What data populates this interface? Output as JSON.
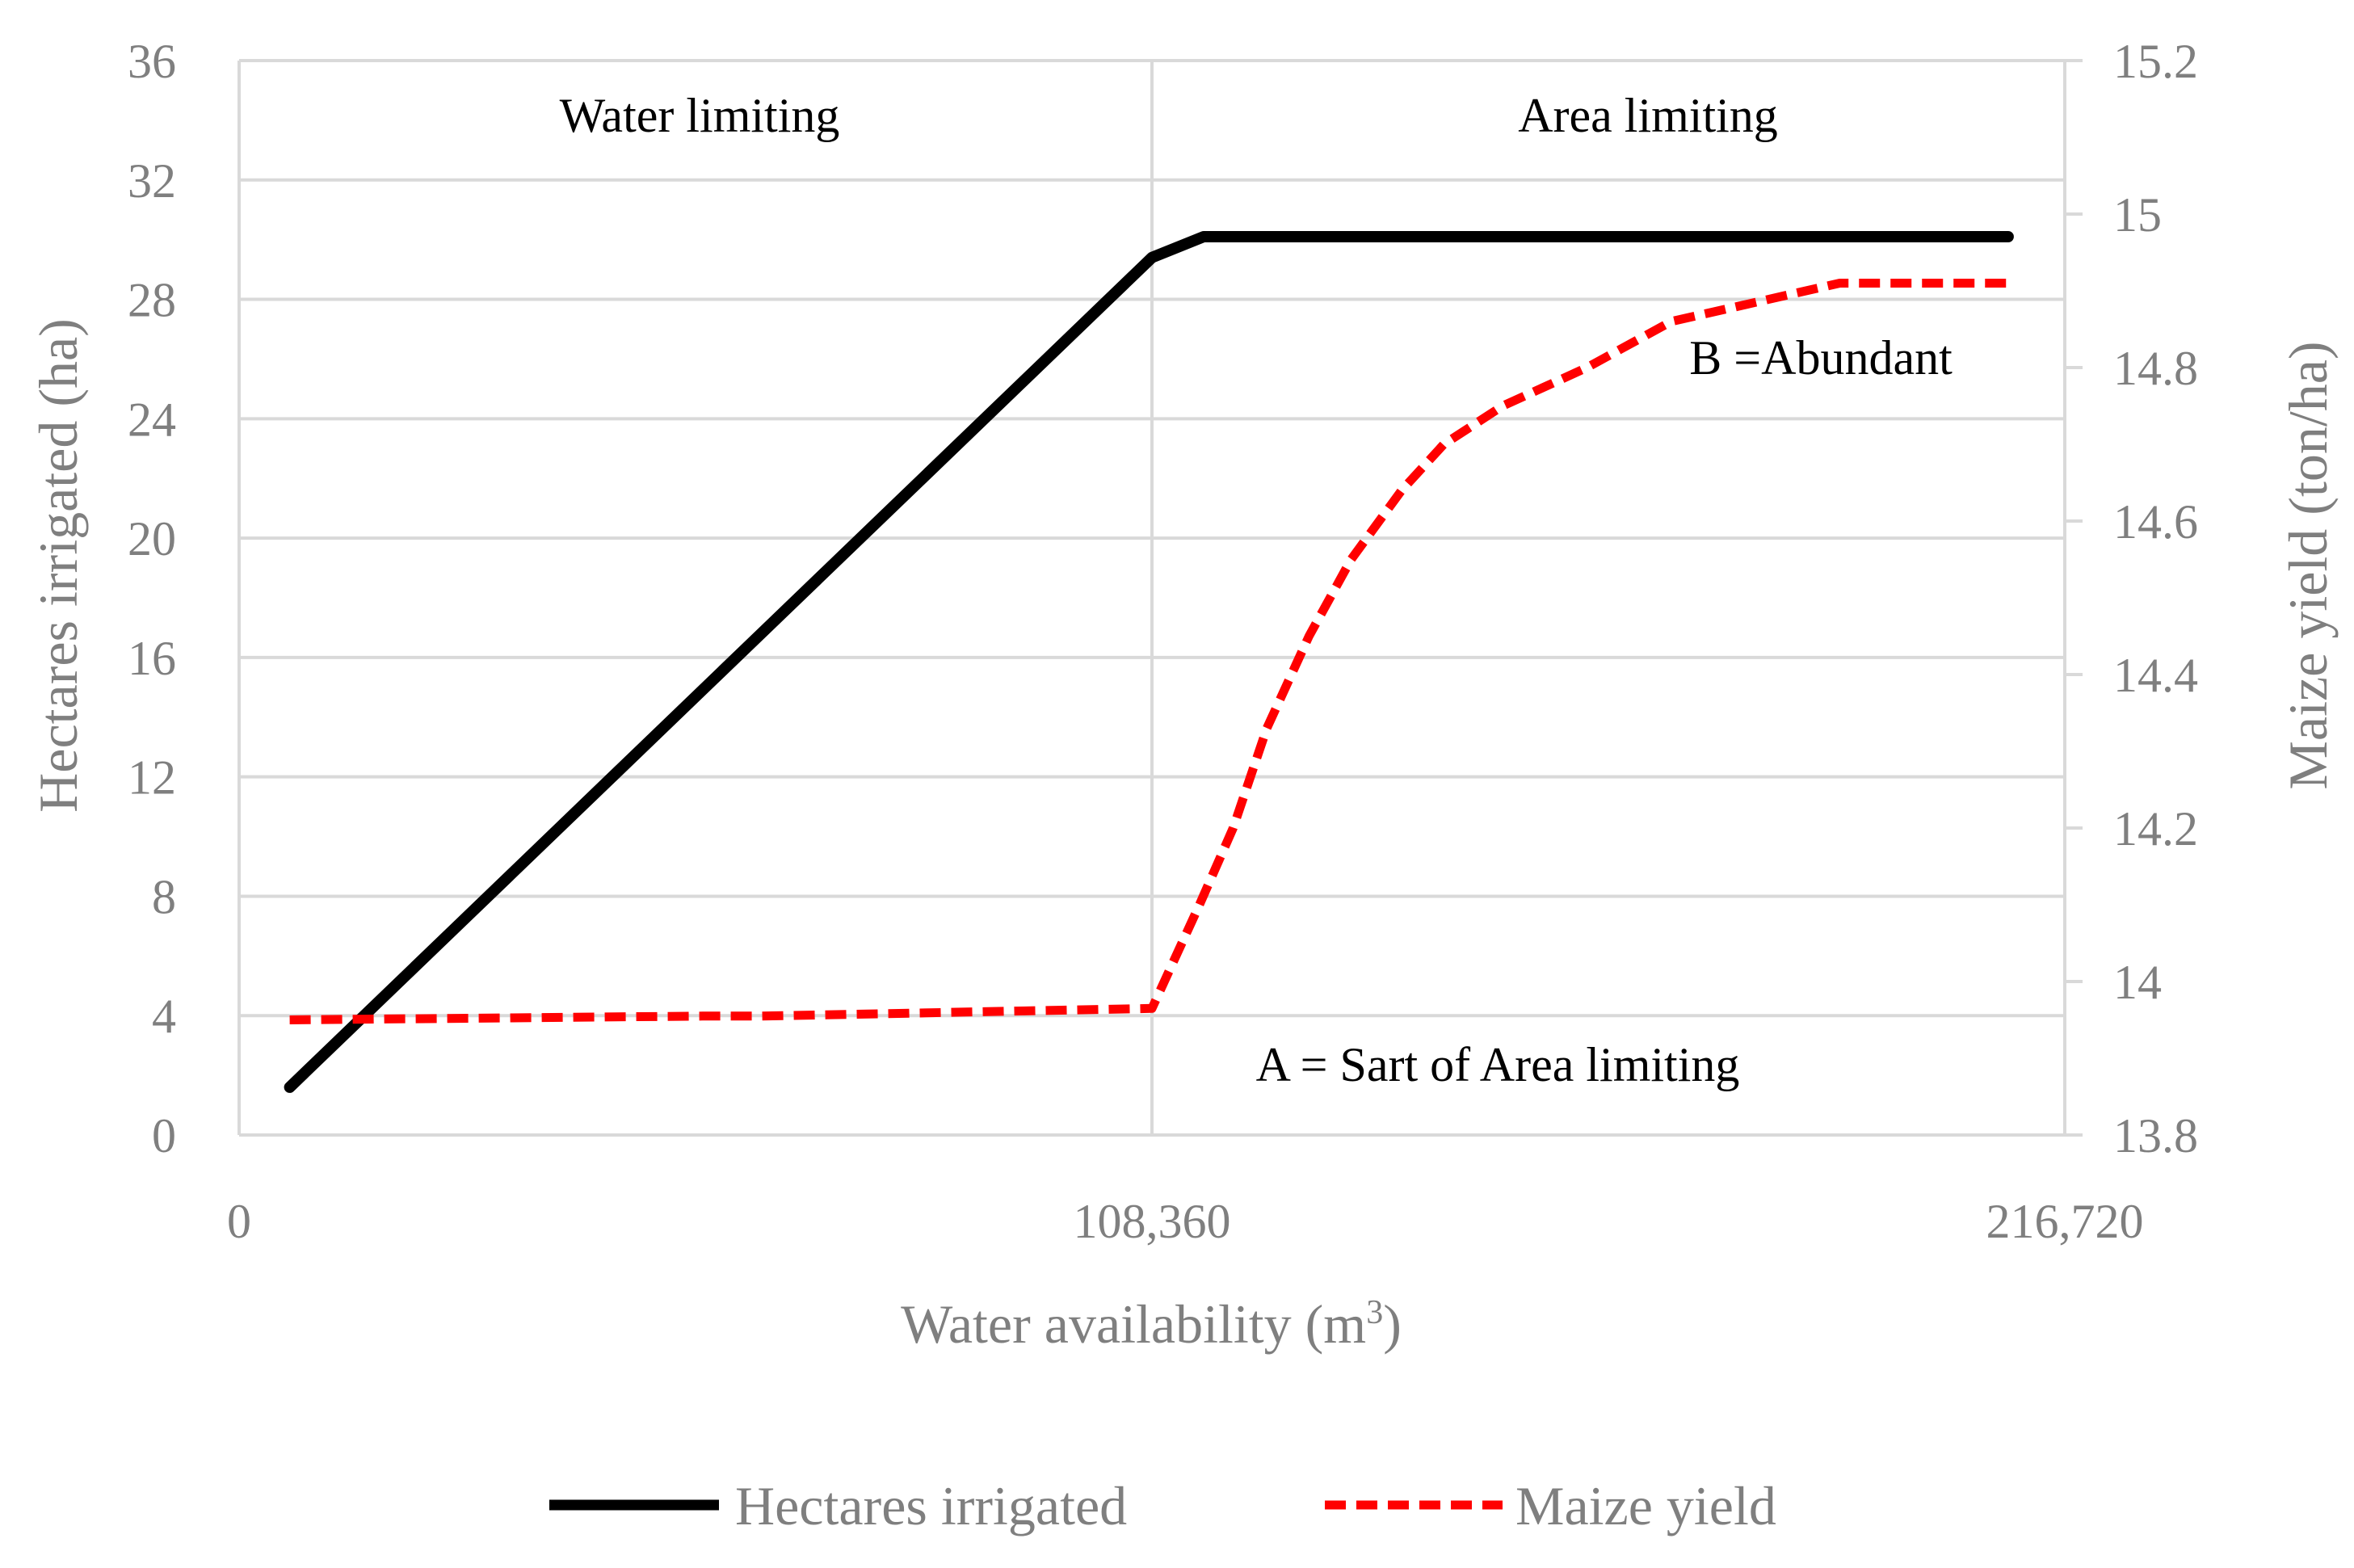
{
  "chart_data": {
    "type": "line",
    "xlabel": "Water availability (m",
    "xlabel_sup": "3",
    "xlabel_end": ")",
    "ylabel_left": "Hectares irrigated (ha)",
    "ylabel_right": "Maize yield (ton/ha)",
    "x_range": [
      0,
      216720
    ],
    "y_left_range": [
      0,
      36
    ],
    "y_right_range": [
      13.8,
      15.2
    ],
    "x_tick_values": [
      0,
      108360,
      216720
    ],
    "x_tick_labels": [
      "0",
      "108,360",
      "216,720"
    ],
    "y_left_ticks": [
      "0",
      "4",
      "8",
      "12",
      "16",
      "20",
      "24",
      "28",
      "32",
      "36"
    ],
    "y_right_ticks": [
      "13.8",
      "14",
      "14.2",
      "14.4",
      "14.6",
      "14.8",
      "15",
      "15.2"
    ],
    "gridlines": true,
    "legend_position": "bottom",
    "annotations": {
      "water_limiting": "Water limiting",
      "area_limiting": "Area limiting",
      "point_a": "A = Sart of Area limiting",
      "point_b": "B =Abundant"
    },
    "series": [
      {
        "name": "Hectares irrigated",
        "axis": "left",
        "color": "#000000",
        "style": "solid",
        "x": [
          6000,
          108360,
          114500,
          210000
        ],
        "y": [
          1.6,
          29.4,
          30.1,
          30.1
        ]
      },
      {
        "name": "Maize yield",
        "axis": "right",
        "color": "#ff0000",
        "style": "dashed",
        "x": [
          6000,
          55000,
          62000,
          108360,
          114000,
          118000,
          122000,
          127000,
          132000,
          138000,
          143000,
          150000,
          160000,
          170000,
          190000,
          210000
        ],
        "y": [
          13.95,
          13.955,
          13.955,
          13.965,
          14.1,
          14.2,
          14.33,
          14.45,
          14.55,
          14.64,
          14.7,
          14.75,
          14.8,
          14.86,
          14.91,
          14.91
        ]
      }
    ]
  }
}
